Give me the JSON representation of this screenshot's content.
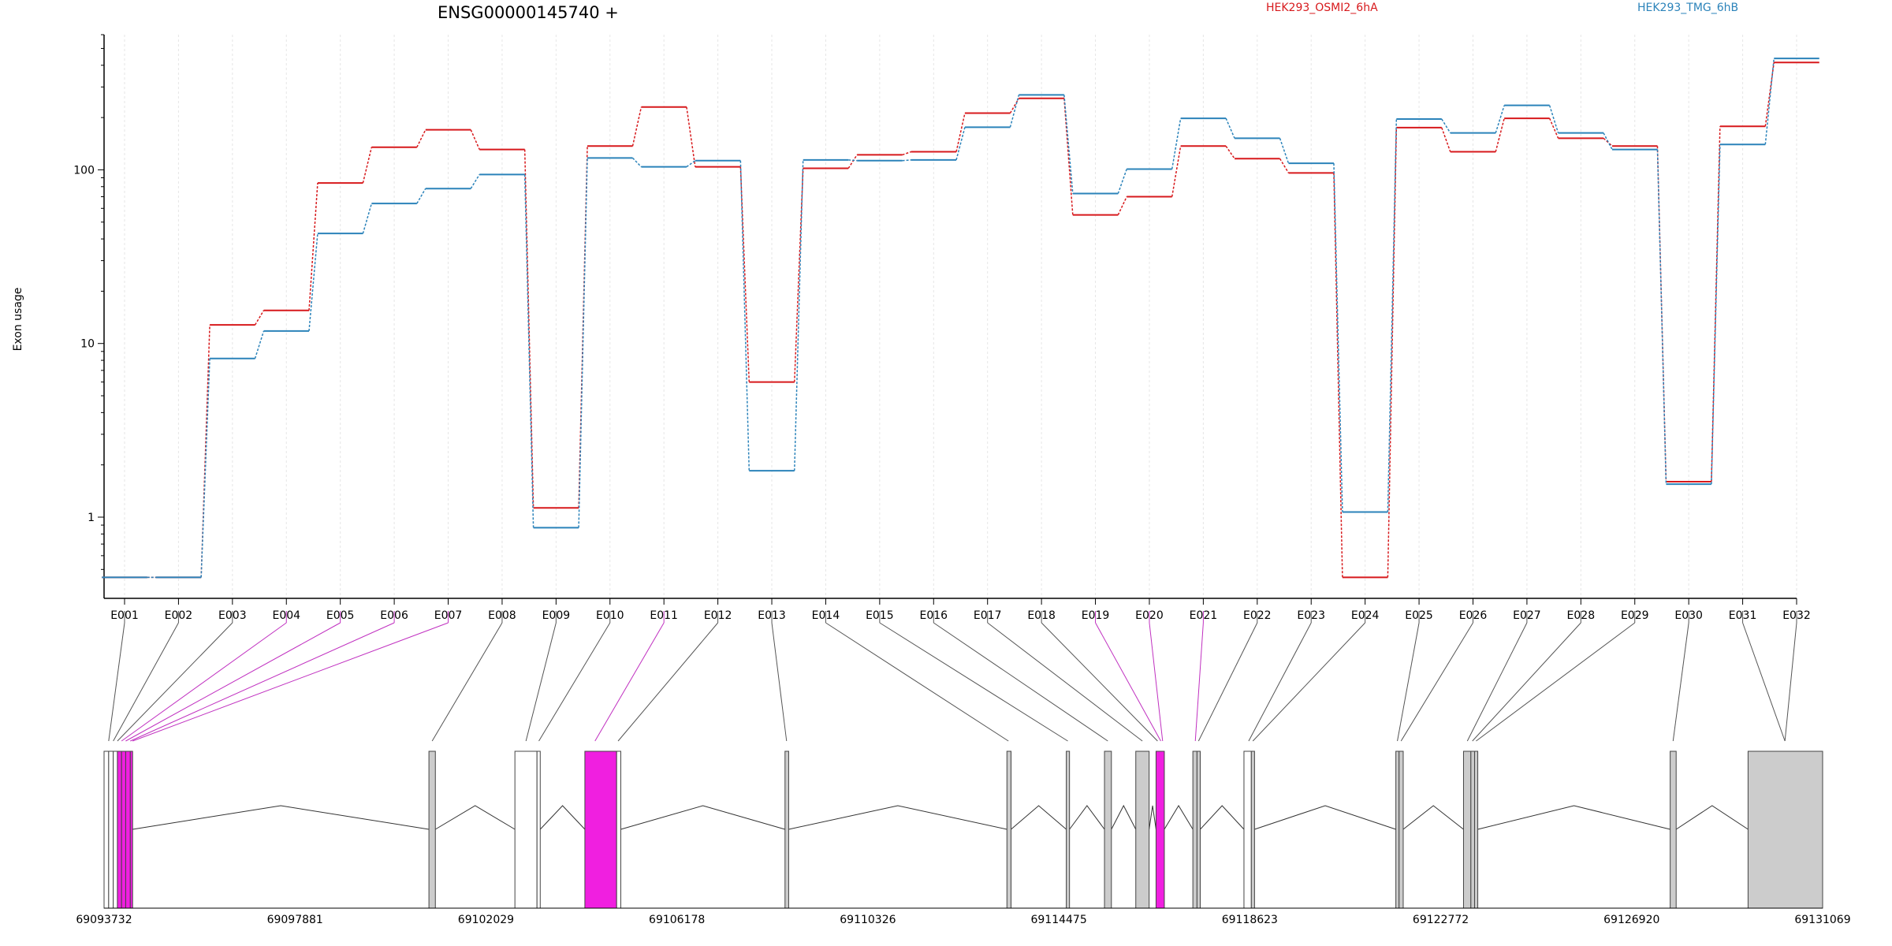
{
  "chart_data": {
    "type": "line",
    "title": "ENSG00000145740 +",
    "ylabel": "Exon usage",
    "yscale": "log",
    "ylim": [
      0.42,
      600
    ],
    "yticks": [
      1,
      10,
      100
    ],
    "ytick_labels": [
      "1",
      "10",
      "100"
    ],
    "grid": "vertical dashed lines at each exon",
    "categories": [
      "E001",
      "E002",
      "E003",
      "E004",
      "E005",
      "E006",
      "E007",
      "E008",
      "E009",
      "E010",
      "E011",
      "E012",
      "E013",
      "E014",
      "E015",
      "E016",
      "E017",
      "E018",
      "E019",
      "E020",
      "E021",
      "E022",
      "E023",
      "E024",
      "E025",
      "E026",
      "E027",
      "E028",
      "E029",
      "E030",
      "E031",
      "E032"
    ],
    "series": [
      {
        "name": "HEK293_OSMI2_6hA",
        "color": "#d7191c",
        "values": [
          0.45,
          0.45,
          12.8,
          15.5,
          84,
          135,
          170,
          131,
          1.13,
          137,
          230,
          104,
          6.0,
          102,
          122,
          127,
          212,
          258,
          55,
          70,
          137,
          116,
          96,
          0.45,
          175,
          127,
          198,
          152,
          137,
          1.6,
          178,
          415
        ]
      },
      {
        "name": "HEK293_TMG_6hB",
        "color": "#2b83ba",
        "values": [
          0.45,
          0.45,
          8.2,
          11.8,
          43,
          64,
          78,
          94,
          0.87,
          117,
          104,
          113,
          1.85,
          114,
          113,
          114,
          176,
          270,
          73,
          101,
          198,
          152,
          109,
          1.07,
          196,
          163,
          235,
          163,
          131,
          1.55,
          140,
          438
        ]
      }
    ],
    "gene_model": {
      "xlabels": [
        "69093732",
        "69097881",
        "69102029",
        "69106178",
        "69110326",
        "69114475",
        "69118623",
        "69122772",
        "69126920",
        "69131069"
      ],
      "xrange": [
        69093732,
        69131069
      ],
      "exon_blocks": [
        {
          "start": 69093732,
          "end": 69093832,
          "fill": "#ffffff"
        },
        {
          "start": 69093832,
          "end": 69093932,
          "fill": "#ffffff"
        },
        {
          "start": 69093932,
          "end": 69094022,
          "fill": "#ffffff"
        },
        {
          "start": 69094022,
          "end": 69094112,
          "fill": "#f01fe0"
        },
        {
          "start": 69094112,
          "end": 69094202,
          "fill": "#f01fe0"
        },
        {
          "start": 69094202,
          "end": 69094302,
          "fill": "#f01fe0"
        },
        {
          "start": 69094302,
          "end": 69094352,
          "fill": "#f01fe0"
        },
        {
          "start": 69100790,
          "end": 69100930,
          "fill": "#cccccc"
        },
        {
          "start": 69102658,
          "end": 69103138,
          "fill": "#ffffff"
        },
        {
          "start": 69103138,
          "end": 69103208,
          "fill": "#ffffff"
        },
        {
          "start": 69104178,
          "end": 69104868,
          "fill": "#f01fe0"
        },
        {
          "start": 69104868,
          "end": 69104958,
          "fill": "#ffffff"
        },
        {
          "start": 69108526,
          "end": 69108606,
          "fill": "#cccccc"
        },
        {
          "start": 69113347,
          "end": 69113437,
          "fill": "#cccccc"
        },
        {
          "start": 69114637,
          "end": 69114707,
          "fill": "#cccccc"
        },
        {
          "start": 69115467,
          "end": 69115617,
          "fill": "#cccccc"
        },
        {
          "start": 69116147,
          "end": 69116437,
          "fill": "#cccccc"
        },
        {
          "start": 69116587,
          "end": 69116767,
          "fill": "#f01fe0"
        },
        {
          "start": 69117387,
          "end": 69117477,
          "fill": "#cccccc"
        },
        {
          "start": 69117477,
          "end": 69117547,
          "fill": "#cccccc"
        },
        {
          "start": 69118497,
          "end": 69118657,
          "fill": "#ffffff"
        },
        {
          "start": 69118657,
          "end": 69118727,
          "fill": "#cccccc"
        },
        {
          "start": 69121797,
          "end": 69121867,
          "fill": "#cccccc"
        },
        {
          "start": 69121867,
          "end": 69121957,
          "fill": "#cccccc"
        },
        {
          "start": 69123267,
          "end": 69123427,
          "fill": "#cccccc"
        },
        {
          "start": 69123427,
          "end": 69123507,
          "fill": "#cccccc"
        },
        {
          "start": 69123507,
          "end": 69123577,
          "fill": "#cccccc"
        },
        {
          "start": 69127757,
          "end": 69127887,
          "fill": "#cccccc"
        },
        {
          "start": 69129449,
          "end": 69131069,
          "fill": "#cccccc"
        }
      ],
      "exon_anchors": [
        69093832,
        69093932,
        69094022,
        69094112,
        69094202,
        69094302,
        69094352,
        69100860,
        69102898,
        69103178,
        69104398,
        69104900,
        69108560,
        69113380,
        69114670,
        69115540,
        69116290,
        69116620,
        69116690,
        69116730,
        69117440,
        69117510,
        69118600,
        69118690,
        69121830,
        69121910,
        69123350,
        69123460,
        69123540,
        69127820,
        69130250,
        69130250
      ]
    }
  }
}
